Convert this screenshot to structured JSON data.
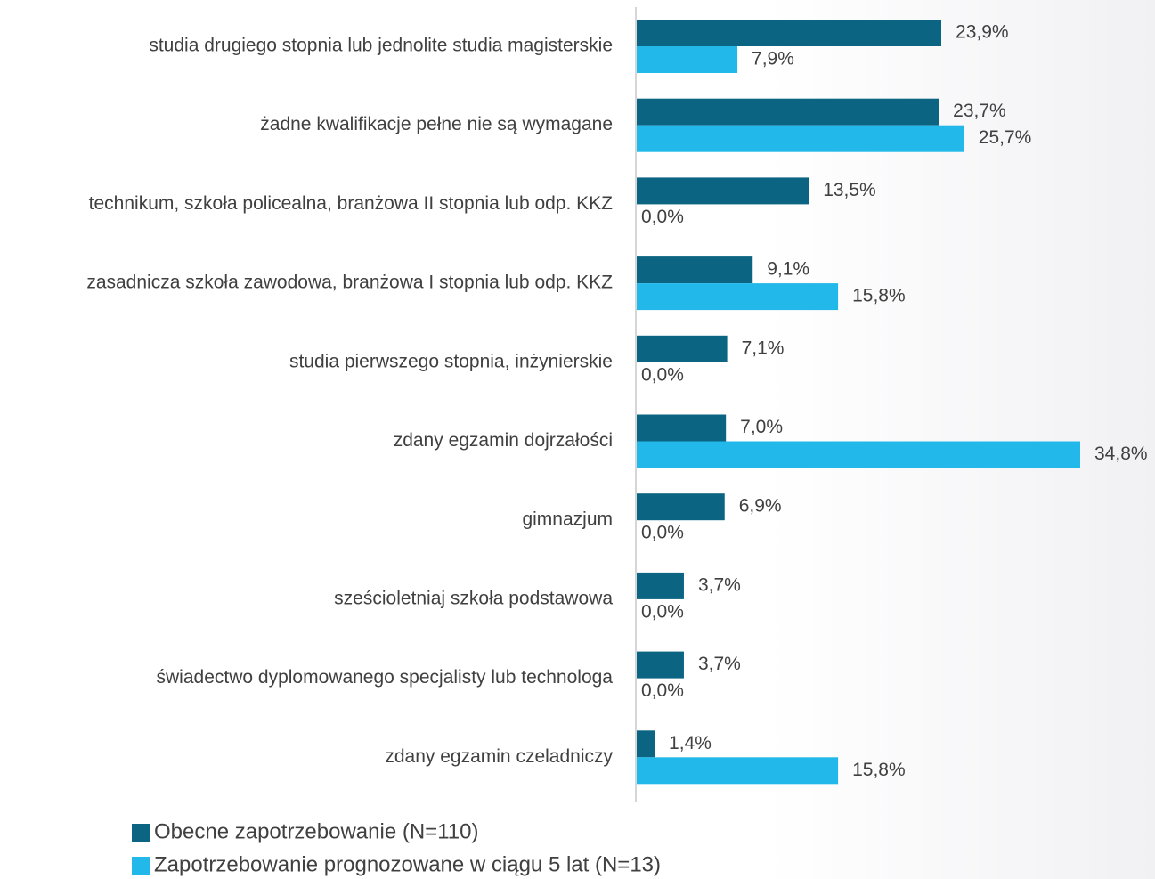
{
  "chart_data": {
    "type": "hbar",
    "categories": [
      "studia drugiego stopnia lub jednolite studia magisterskie",
      "żadne kwalifikacje pełne nie są wymagane",
      "technikum, szkoła policealna, branżowa II stopnia lub odp. KKZ",
      "zasadnicza szkoła zawodowa, branżowa I stopnia  lub odp. KKZ",
      "studia pierwszego stopnia, inżynierskie",
      "zdany egzamin dojrzałości",
      "gimnazjum",
      "sześcioletniaj szkoła podstawowa",
      "świadectwo dyplomowanego specjalisty lub technologa",
      "zdany egzamin czeladniczy"
    ],
    "series": [
      {
        "name": "Obecne zapotrzebowanie (N=110)",
        "color": "#0b6482",
        "values": [
          23.9,
          23.7,
          13.5,
          9.1,
          7.1,
          7.0,
          6.9,
          3.7,
          3.7,
          1.4
        ],
        "value_labels": [
          "23,9%",
          "23,7%",
          "13,5%",
          "9,1%",
          "7,1%",
          "7,0%",
          "6,9%",
          "3,7%",
          "3,7%",
          "1,4%"
        ]
      },
      {
        "name": "Zapotrzebowanie prognozowane w ciągu 5 lat (N=13)",
        "color": "#22b8ea",
        "values": [
          7.9,
          25.7,
          0.0,
          15.8,
          0.0,
          34.8,
          0.0,
          0.0,
          0.0,
          15.8
        ],
        "value_labels": [
          "7,9%",
          "25,7%",
          "0,0%",
          "15,8%",
          "0,0%",
          "34,8%",
          "0,0%",
          "0,0%",
          "0,0%",
          "15,8%"
        ]
      }
    ],
    "legend": "bottom-left"
  }
}
